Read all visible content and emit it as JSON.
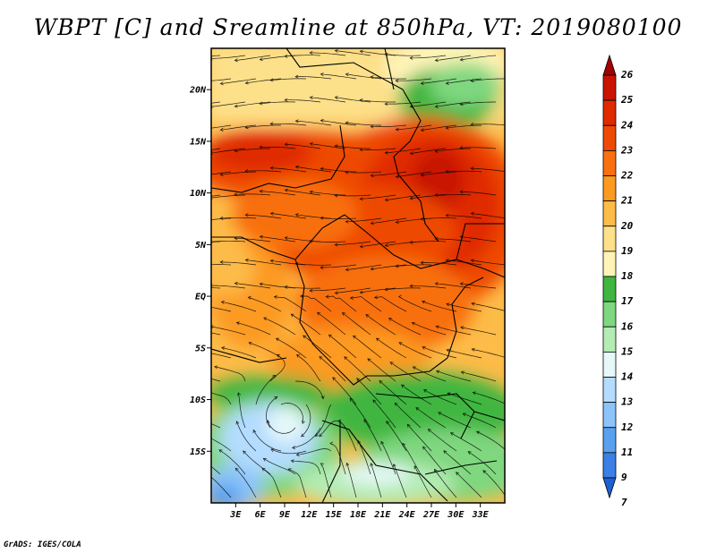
{
  "title": "WBPT [C] and Sreamline at 850hPa, VT: 2019080100",
  "credit": "GrADS: IGES/COLA",
  "map": {
    "lon_range": [
      0,
      36
    ],
    "lat_range": [
      -20,
      24
    ],
    "lat_ticks": [
      "20N",
      "15N",
      "10N",
      "5N",
      "EQ",
      "5S",
      "10S",
      "15S"
    ],
    "lat_values": [
      20,
      15,
      10,
      5,
      0,
      -5,
      -10,
      -15
    ],
    "lon_ticks": [
      "3E",
      "6E",
      "9E",
      "12E",
      "15E",
      "18E",
      "21E",
      "24E",
      "27E",
      "30E",
      "33E"
    ],
    "lon_values": [
      3,
      6,
      9,
      12,
      15,
      18,
      21,
      24,
      27,
      30,
      33
    ]
  },
  "colorbar": {
    "labels": [
      "26",
      "25",
      "24",
      "23",
      "22",
      "21",
      "20",
      "19",
      "18",
      "17",
      "16",
      "15",
      "14",
      "13",
      "12",
      "11",
      "9",
      "7"
    ],
    "colors": [
      "#a50000",
      "#c81400",
      "#e02a00",
      "#ee4a06",
      "#f87010",
      "#fc9a20",
      "#fdbb48",
      "#fde08a",
      "#fff4b8",
      "#3fb63f",
      "#7fd77f",
      "#b4ecb4",
      "#e6f8f8",
      "#b4dcff",
      "#8cc4fa",
      "#5aa0f0",
      "#3c7fe6",
      "#1e5fd2"
    ]
  }
}
